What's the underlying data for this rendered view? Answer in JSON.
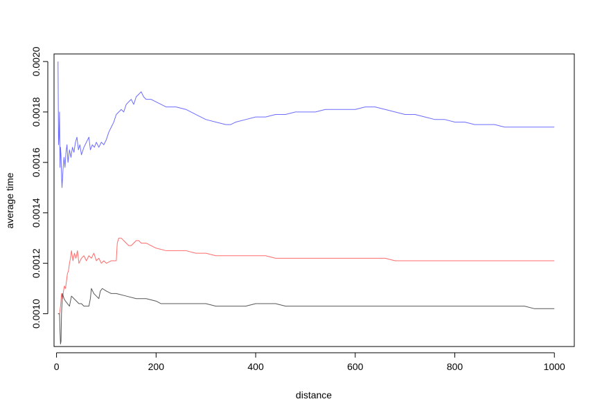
{
  "chart_data": {
    "type": "line",
    "title": "",
    "xlabel": "distance",
    "ylabel": "average time",
    "xlim": [
      -5,
      1040
    ],
    "ylim": [
      0.00087,
      0.00203
    ],
    "x_ticks": [
      0,
      200,
      400,
      600,
      800,
      1000
    ],
    "x_tick_labels": [
      "0",
      "200",
      "400",
      "600",
      "800",
      "1000"
    ],
    "y_ticks": [
      0.001,
      0.0012,
      0.0014,
      0.0016,
      0.0018,
      0.002
    ],
    "y_tick_labels": [
      "0.0010",
      "0.0012",
      "0.0014",
      "0.0016",
      "0.0018",
      "0.0020"
    ],
    "grid": false,
    "legend": "none",
    "series": [
      {
        "color": "#6b6bff",
        "points": [
          [
            3,
            0.002
          ],
          [
            4,
            0.00167
          ],
          [
            5,
            0.0017
          ],
          [
            6,
            0.0018
          ],
          [
            7,
            0.00158
          ],
          [
            8,
            0.00166
          ],
          [
            9,
            0.00163
          ],
          [
            10,
            0.00155
          ],
          [
            11,
            0.0015
          ],
          [
            13,
            0.00157
          ],
          [
            15,
            0.00162
          ],
          [
            17,
            0.00158
          ],
          [
            19,
            0.00164
          ],
          [
            21,
            0.00167
          ],
          [
            23,
            0.0016
          ],
          [
            26,
            0.00165
          ],
          [
            29,
            0.00162
          ],
          [
            32,
            0.00166
          ],
          [
            35,
            0.00164
          ],
          [
            38,
            0.00168
          ],
          [
            41,
            0.0017
          ],
          [
            44,
            0.00165
          ],
          [
            47,
            0.00167
          ],
          [
            50,
            0.00163
          ],
          [
            55,
            0.00166
          ],
          [
            60,
            0.00168
          ],
          [
            65,
            0.0017
          ],
          [
            68,
            0.00165
          ],
          [
            72,
            0.00167
          ],
          [
            76,
            0.00166
          ],
          [
            80,
            0.00168
          ],
          [
            85,
            0.00166
          ],
          [
            90,
            0.00168
          ],
          [
            95,
            0.00167
          ],
          [
            100,
            0.00169
          ],
          [
            105,
            0.00172
          ],
          [
            110,
            0.00174
          ],
          [
            115,
            0.00176
          ],
          [
            120,
            0.00179
          ],
          [
            125,
            0.0018
          ],
          [
            130,
            0.00181
          ],
          [
            135,
            0.0018
          ],
          [
            140,
            0.00183
          ],
          [
            145,
            0.00184
          ],
          [
            150,
            0.00185
          ],
          [
            155,
            0.00183
          ],
          [
            160,
            0.00186
          ],
          [
            165,
            0.00187
          ],
          [
            170,
            0.00188
          ],
          [
            175,
            0.00186
          ],
          [
            180,
            0.00185
          ],
          [
            190,
            0.00185
          ],
          [
            200,
            0.00184
          ],
          [
            210,
            0.00183
          ],
          [
            220,
            0.00182
          ],
          [
            240,
            0.00182
          ],
          [
            260,
            0.00181
          ],
          [
            280,
            0.00179
          ],
          [
            300,
            0.00177
          ],
          [
            320,
            0.00176
          ],
          [
            340,
            0.00175
          ],
          [
            350,
            0.00175
          ],
          [
            360,
            0.00176
          ],
          [
            380,
            0.00177
          ],
          [
            400,
            0.00178
          ],
          [
            420,
            0.00178
          ],
          [
            440,
            0.00179
          ],
          [
            460,
            0.00179
          ],
          [
            480,
            0.0018
          ],
          [
            500,
            0.0018
          ],
          [
            520,
            0.0018
          ],
          [
            540,
            0.00181
          ],
          [
            560,
            0.00181
          ],
          [
            580,
            0.00181
          ],
          [
            600,
            0.00181
          ],
          [
            620,
            0.00182
          ],
          [
            640,
            0.00182
          ],
          [
            660,
            0.00181
          ],
          [
            680,
            0.0018
          ],
          [
            700,
            0.00179
          ],
          [
            720,
            0.00179
          ],
          [
            740,
            0.00178
          ],
          [
            760,
            0.00177
          ],
          [
            780,
            0.00177
          ],
          [
            800,
            0.00176
          ],
          [
            820,
            0.00176
          ],
          [
            840,
            0.00175
          ],
          [
            860,
            0.00175
          ],
          [
            880,
            0.00175
          ],
          [
            900,
            0.00174
          ],
          [
            920,
            0.00174
          ],
          [
            940,
            0.00174
          ],
          [
            960,
            0.00174
          ],
          [
            980,
            0.00174
          ],
          [
            1000,
            0.00174
          ]
        ]
      },
      {
        "color": "#ff6b6b",
        "points": [
          [
            3,
            0.001
          ],
          [
            6,
            0.001
          ],
          [
            8,
            0.00103
          ],
          [
            10,
            0.00108
          ],
          [
            12,
            0.00106
          ],
          [
            14,
            0.00109
          ],
          [
            16,
            0.00111
          ],
          [
            18,
            0.0011
          ],
          [
            20,
            0.00113
          ],
          [
            22,
            0.00116
          ],
          [
            24,
            0.00117
          ],
          [
            26,
            0.0012
          ],
          [
            28,
            0.00122
          ],
          [
            30,
            0.00125
          ],
          [
            33,
            0.00121
          ],
          [
            36,
            0.00124
          ],
          [
            39,
            0.00122
          ],
          [
            42,
            0.00125
          ],
          [
            45,
            0.0012
          ],
          [
            50,
            0.00122
          ],
          [
            55,
            0.00123
          ],
          [
            60,
            0.00121
          ],
          [
            65,
            0.00123
          ],
          [
            70,
            0.00122
          ],
          [
            75,
            0.00124
          ],
          [
            80,
            0.00121
          ],
          [
            85,
            0.00122
          ],
          [
            90,
            0.0012
          ],
          [
            95,
            0.00121
          ],
          [
            100,
            0.0012
          ],
          [
            110,
            0.00121
          ],
          [
            120,
            0.00121
          ],
          [
            122,
            0.00128
          ],
          [
            125,
            0.0013
          ],
          [
            130,
            0.0013
          ],
          [
            135,
            0.00129
          ],
          [
            140,
            0.00128
          ],
          [
            145,
            0.00127
          ],
          [
            150,
            0.00127
          ],
          [
            155,
            0.00128
          ],
          [
            160,
            0.00129
          ],
          [
            165,
            0.00129
          ],
          [
            170,
            0.00128
          ],
          [
            180,
            0.00128
          ],
          [
            190,
            0.00127
          ],
          [
            200,
            0.00126
          ],
          [
            220,
            0.00125
          ],
          [
            240,
            0.00125
          ],
          [
            260,
            0.00125
          ],
          [
            280,
            0.00124
          ],
          [
            300,
            0.00124
          ],
          [
            320,
            0.00123
          ],
          [
            340,
            0.00123
          ],
          [
            360,
            0.00123
          ],
          [
            380,
            0.00123
          ],
          [
            400,
            0.00123
          ],
          [
            420,
            0.00123
          ],
          [
            440,
            0.00122
          ],
          [
            460,
            0.00122
          ],
          [
            480,
            0.00122
          ],
          [
            500,
            0.00122
          ],
          [
            520,
            0.00122
          ],
          [
            540,
            0.00122
          ],
          [
            560,
            0.00122
          ],
          [
            580,
            0.00122
          ],
          [
            600,
            0.00122
          ],
          [
            620,
            0.00122
          ],
          [
            640,
            0.00122
          ],
          [
            660,
            0.00122
          ],
          [
            680,
            0.00121
          ],
          [
            700,
            0.00121
          ],
          [
            720,
            0.00121
          ],
          [
            740,
            0.00121
          ],
          [
            760,
            0.00121
          ],
          [
            780,
            0.00121
          ],
          [
            800,
            0.00121
          ],
          [
            820,
            0.00121
          ],
          [
            840,
            0.00121
          ],
          [
            860,
            0.00121
          ],
          [
            880,
            0.00121
          ],
          [
            900,
            0.00121
          ],
          [
            920,
            0.00121
          ],
          [
            940,
            0.00121
          ],
          [
            960,
            0.00121
          ],
          [
            980,
            0.00121
          ],
          [
            1000,
            0.00121
          ]
        ]
      },
      {
        "color": "#555555",
        "points": [
          [
            3,
            0.001
          ],
          [
            6,
            0.001
          ],
          [
            7,
            0.00093
          ],
          [
            8,
            0.00088
          ],
          [
            9,
            0.00089
          ],
          [
            10,
            0.001
          ],
          [
            12,
            0.00108
          ],
          [
            15,
            0.00106
          ],
          [
            18,
            0.00105
          ],
          [
            22,
            0.00104
          ],
          [
            26,
            0.00103
          ],
          [
            30,
            0.00107
          ],
          [
            35,
            0.00106
          ],
          [
            40,
            0.00105
          ],
          [
            45,
            0.00104
          ],
          [
            50,
            0.00104
          ],
          [
            55,
            0.00103
          ],
          [
            60,
            0.00103
          ],
          [
            65,
            0.00103
          ],
          [
            68,
            0.00106
          ],
          [
            70,
            0.0011
          ],
          [
            75,
            0.00108
          ],
          [
            80,
            0.00107
          ],
          [
            85,
            0.00106
          ],
          [
            88,
            0.00109
          ],
          [
            92,
            0.0011
          ],
          [
            100,
            0.00109
          ],
          [
            110,
            0.00108
          ],
          [
            120,
            0.00108
          ],
          [
            140,
            0.00107
          ],
          [
            160,
            0.00106
          ],
          [
            180,
            0.00106
          ],
          [
            200,
            0.00105
          ],
          [
            210,
            0.00104
          ],
          [
            220,
            0.00104
          ],
          [
            240,
            0.00104
          ],
          [
            260,
            0.00104
          ],
          [
            280,
            0.00104
          ],
          [
            300,
            0.00104
          ],
          [
            320,
            0.00103
          ],
          [
            340,
            0.00103
          ],
          [
            360,
            0.00103
          ],
          [
            380,
            0.00103
          ],
          [
            400,
            0.00104
          ],
          [
            420,
            0.00104
          ],
          [
            440,
            0.00104
          ],
          [
            460,
            0.00103
          ],
          [
            480,
            0.00103
          ],
          [
            500,
            0.00103
          ],
          [
            520,
            0.00103
          ],
          [
            540,
            0.00103
          ],
          [
            560,
            0.00103
          ],
          [
            580,
            0.00103
          ],
          [
            600,
            0.00103
          ],
          [
            620,
            0.00103
          ],
          [
            640,
            0.00103
          ],
          [
            660,
            0.00103
          ],
          [
            680,
            0.00103
          ],
          [
            700,
            0.00103
          ],
          [
            720,
            0.00103
          ],
          [
            740,
            0.00103
          ],
          [
            760,
            0.00103
          ],
          [
            780,
            0.00103
          ],
          [
            800,
            0.00103
          ],
          [
            820,
            0.00103
          ],
          [
            840,
            0.00103
          ],
          [
            860,
            0.00103
          ],
          [
            880,
            0.00103
          ],
          [
            900,
            0.00103
          ],
          [
            920,
            0.00103
          ],
          [
            940,
            0.00103
          ],
          [
            960,
            0.00102
          ],
          [
            980,
            0.00102
          ],
          [
            1000,
            0.00102
          ]
        ]
      }
    ]
  }
}
